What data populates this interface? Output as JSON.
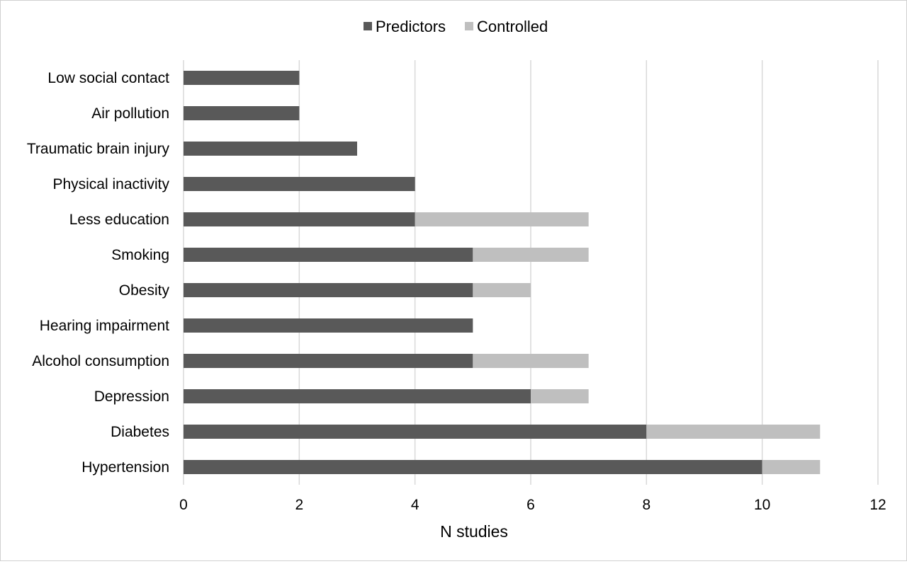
{
  "chart_data": {
    "type": "bar",
    "orientation": "horizontal",
    "stacked": true,
    "title": "",
    "xlabel": "N studies",
    "ylabel": "",
    "xlim": [
      0,
      12
    ],
    "xticks": [
      0,
      2,
      4,
      6,
      8,
      10,
      12
    ],
    "grid": "vertical",
    "legend_position": "top-center",
    "categories": [
      "Low social contact",
      "Air pollution",
      "Traumatic brain injury",
      "Physical inactivity",
      "Less education",
      "Smoking",
      "Obesity",
      "Hearing impairment",
      "Alcohol consumption",
      "Depression",
      "Diabetes",
      "Hypertension"
    ],
    "series": [
      {
        "name": "Predictors",
        "color": "#595959",
        "values": [
          2,
          2,
          3,
          4,
          4,
          5,
          5,
          5,
          5,
          6,
          8,
          10
        ]
      },
      {
        "name": "Controlled",
        "color": "#bfbfbf",
        "values": [
          0,
          0,
          0,
          0,
          3,
          2,
          1,
          0,
          2,
          1,
          3,
          1
        ]
      }
    ]
  }
}
